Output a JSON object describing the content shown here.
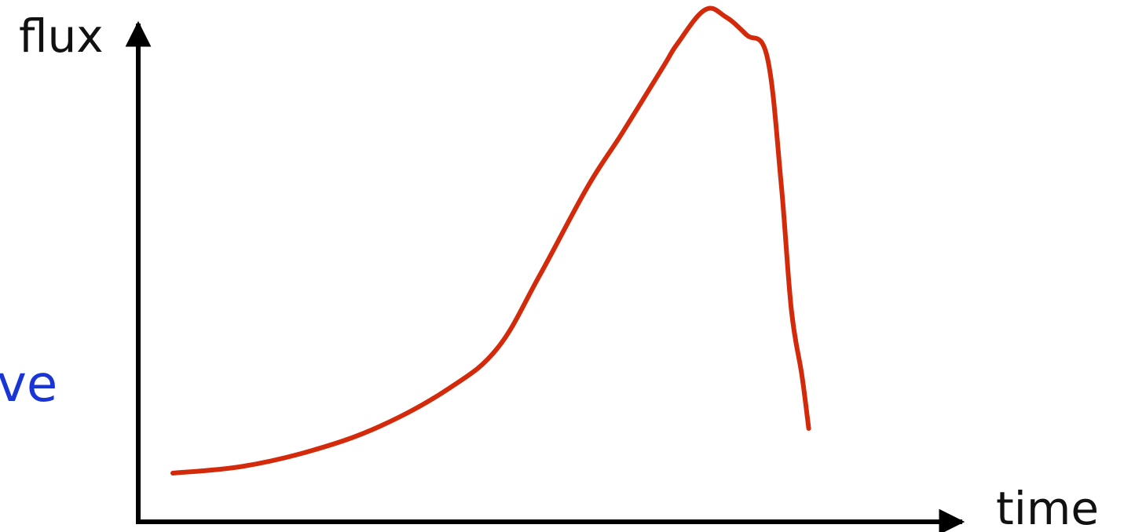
{
  "side_text": "ve",
  "colors": {
    "axis": "#000000",
    "curve": "#d42a0c",
    "side_text": "#1a35d6",
    "text": "#111111"
  },
  "chart_data": {
    "type": "line",
    "xlabel": "time",
    "ylabel": "flux",
    "grid": false,
    "xlim": [
      0,
      100
    ],
    "ylim": [
      0,
      100
    ],
    "series": [
      {
        "values_x": [
          0,
          10,
          20,
          30,
          40,
          47,
          53,
          60,
          65,
          71,
          73,
          77,
          80,
          83,
          86,
          88,
          89.5,
          91,
          92
        ],
        "values_y": [
          10,
          11.5,
          15,
          20.5,
          29,
          38,
          54,
          74,
          86,
          101,
          106,
          113.6,
          112,
          108,
          103,
          75,
          46.4,
          32,
          20
        ]
      }
    ]
  }
}
